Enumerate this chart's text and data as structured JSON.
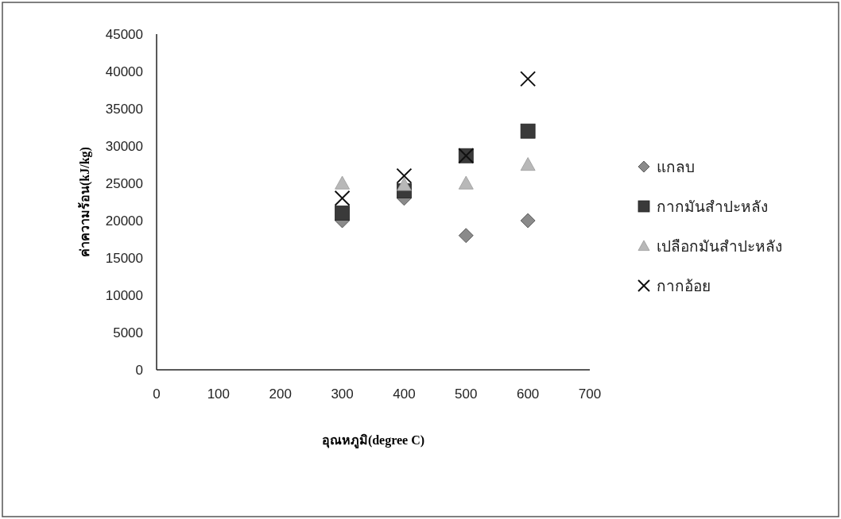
{
  "chart_data": {
    "type": "scatter",
    "xlabel": "อุณหภูมิ(degree C)",
    "ylabel": "ค่าความร้อน(kJ/kg)",
    "x": [
      300,
      400,
      500,
      600
    ],
    "xlim": [
      0,
      700
    ],
    "xticks": [
      0,
      100,
      200,
      300,
      400,
      500,
      600,
      700
    ],
    "ylim": [
      0,
      45000
    ],
    "yticks": [
      0,
      5000,
      10000,
      15000,
      20000,
      25000,
      30000,
      35000,
      40000,
      45000
    ],
    "legend": "right",
    "grid": false,
    "series": [
      {
        "name": "แกลบ",
        "color": "#8a8a8a",
        "marker": "diamond",
        "values": [
          20000,
          23000,
          18000,
          20000
        ]
      },
      {
        "name": "กากมันสำปะหลัง",
        "color": "#3a3a3a",
        "marker": "square",
        "values": [
          21000,
          24000,
          28700,
          32000
        ]
      },
      {
        "name": "เปลือกมันสำปะหลัง",
        "color": "#b8b8b8",
        "marker": "triangle",
        "values": [
          25000,
          24800,
          25000,
          27500
        ]
      },
      {
        "name": "กากอ้อย",
        "color": "#111111",
        "marker": "cross",
        "values": [
          23000,
          26000,
          28700,
          39000
        ]
      }
    ]
  }
}
